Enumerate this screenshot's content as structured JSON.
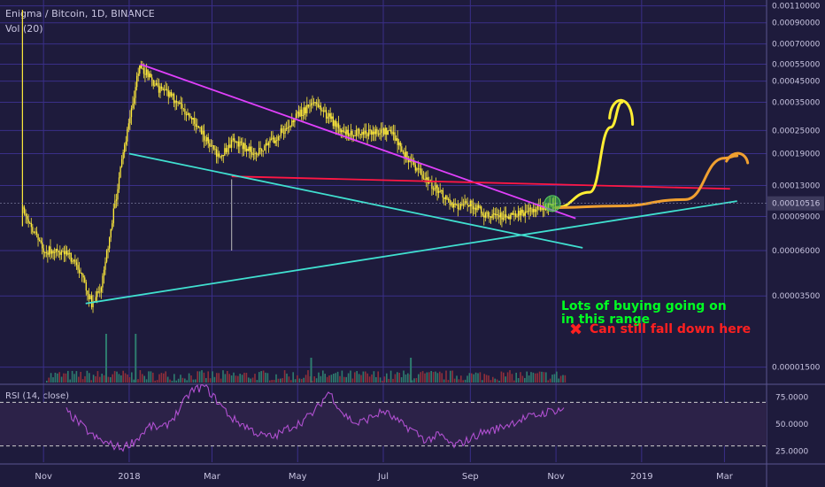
{
  "header": {
    "title": "Enigma / Bitcoin, 1D, BINANCE",
    "volume_label": "Vol (20)"
  },
  "rsi_label": "RSI (14, close)",
  "price_tag": "0.00010516",
  "annotations": {
    "buying": "Lots of buying going on in this range",
    "fall": "Can still fall down here",
    "x_mark": "✖"
  },
  "colors": {
    "background": "#1e1b3c",
    "grid": "#3a2f88",
    "candle": "#ffeb3b",
    "magenta_line": "#e040fb",
    "red_line": "#ff1744",
    "cyan_line": "#40e0d0",
    "projection_yellow": "#ffee33",
    "projection_orange": "#f0a030",
    "text_green": "#00ff22",
    "text_red": "#ff2020",
    "rsi": "#b050d0"
  },
  "chart_data": [
    {
      "type": "candlestick",
      "title": "Enigma / Bitcoin, 1D, BINANCE",
      "y_scale": "log",
      "y_ticks": [
        "0.00110000",
        "0.00090000",
        "0.00070000",
        "0.00055000",
        "0.00045000",
        "0.00035000",
        "0.00025000",
        "0.00019000",
        "0.00013000",
        "0.00009000",
        "0.00006000",
        "0.00003500",
        "0.00001500"
      ],
      "x_ticks": [
        "Nov",
        "2018",
        "Mar",
        "May",
        "Jul",
        "Sep",
        "Nov",
        "2019",
        "Mar"
      ],
      "last_price": 0.00010516,
      "close_path": [
        [
          "2017-10-17",
          0.0001
        ],
        [
          "2017-10-22",
          8e-05
        ],
        [
          "2017-11-01",
          6e-05
        ],
        [
          "2017-11-15",
          6e-05
        ],
        [
          "2017-11-25",
          5e-05
        ],
        [
          "2017-12-05",
          3.2e-05
        ],
        [
          "2017-12-12",
          4e-05
        ],
        [
          "2017-12-20",
          9e-05
        ],
        [
          "2017-12-28",
          0.0002
        ],
        [
          "2018-01-08",
          0.00055
        ],
        [
          "2018-01-20",
          0.00042
        ],
        [
          "2018-02-05",
          0.00035
        ],
        [
          "2018-02-20",
          0.00025
        ],
        [
          "2018-03-05",
          0.00018
        ],
        [
          "2018-03-15",
          0.00022
        ],
        [
          "2018-04-01",
          0.00019
        ],
        [
          "2018-04-15",
          0.00023
        ],
        [
          "2018-05-01",
          0.0003
        ],
        [
          "2018-05-12",
          0.00035
        ],
        [
          "2018-06-01",
          0.00025
        ],
        [
          "2018-06-15",
          0.00024
        ],
        [
          "2018-07-05",
          0.00025
        ],
        [
          "2018-07-20",
          0.00017
        ],
        [
          "2018-08-05",
          0.00013
        ],
        [
          "2018-08-20",
          0.0001
        ],
        [
          "2018-09-01",
          0.000105
        ],
        [
          "2018-09-15",
          8.8e-05
        ],
        [
          "2018-10-01",
          9.2e-05
        ],
        [
          "2018-10-20",
          0.0001
        ],
        [
          "2018-11-01",
          0.000105
        ]
      ],
      "volume_spikes": [
        [
          "2017-12-15",
          "high"
        ],
        [
          "2018-01-05",
          "high"
        ],
        [
          "2018-05-10",
          "medium"
        ],
        [
          "2018-07-20",
          "medium"
        ]
      ],
      "trendlines": [
        {
          "name": "descending resistance",
          "from": [
            "2018-01-09",
            0.00055
          ],
          "to": [
            "2018-11-15",
            8.8e-05
          ]
        },
        {
          "name": "horizontal resistance",
          "from": [
            "2018-03-15",
            0.000145
          ],
          "to": [
            "2019-03-05",
            0.000125
          ]
        },
        {
          "name": "lower support",
          "from": [
            "2018-01-01",
            0.00019
          ],
          "to": [
            "2018-11-20",
            6.2e-05
          ]
        },
        {
          "name": "rising support",
          "from": [
            "2017-12-01",
            3.2e-05
          ],
          "to": [
            "2019-03-10",
            0.000108
          ]
        }
      ],
      "projections": [
        {
          "color": "yellow",
          "path": [
            [
              "2018-11-01",
              0.0001
            ],
            [
              "2018-11-25",
              0.00012
            ],
            [
              "2018-12-10",
              0.00026
            ],
            [
              "2018-12-18",
              0.00035
            ]
          ]
        },
        {
          "color": "orange",
          "path": [
            [
              "2018-11-01",
              0.0001
            ],
            [
              "2018-12-15",
              0.000102
            ],
            [
              "2019-02-01",
              0.00011
            ],
            [
              "2019-03-01",
              0.00018
            ],
            [
              "2019-03-10",
              0.000185
            ]
          ]
        }
      ]
    },
    {
      "type": "line",
      "title": "RSI (14, close)",
      "y_ticks": [
        "75.0000",
        "50.0000",
        "25.0000"
      ],
      "ylim": [
        15,
        85
      ],
      "bands": [
        70,
        30
      ],
      "series": [
        {
          "name": "RSI (14, close)",
          "values": [
            62,
            50,
            38,
            32,
            28,
            35,
            48,
            46,
            60,
            80,
            85,
            70,
            55,
            48,
            40,
            38,
            46,
            52,
            62,
            80,
            60,
            50,
            56,
            62,
            52,
            45,
            35,
            40,
            30,
            35,
            42,
            45,
            50,
            55,
            58,
            62,
            64
          ]
        }
      ]
    }
  ]
}
